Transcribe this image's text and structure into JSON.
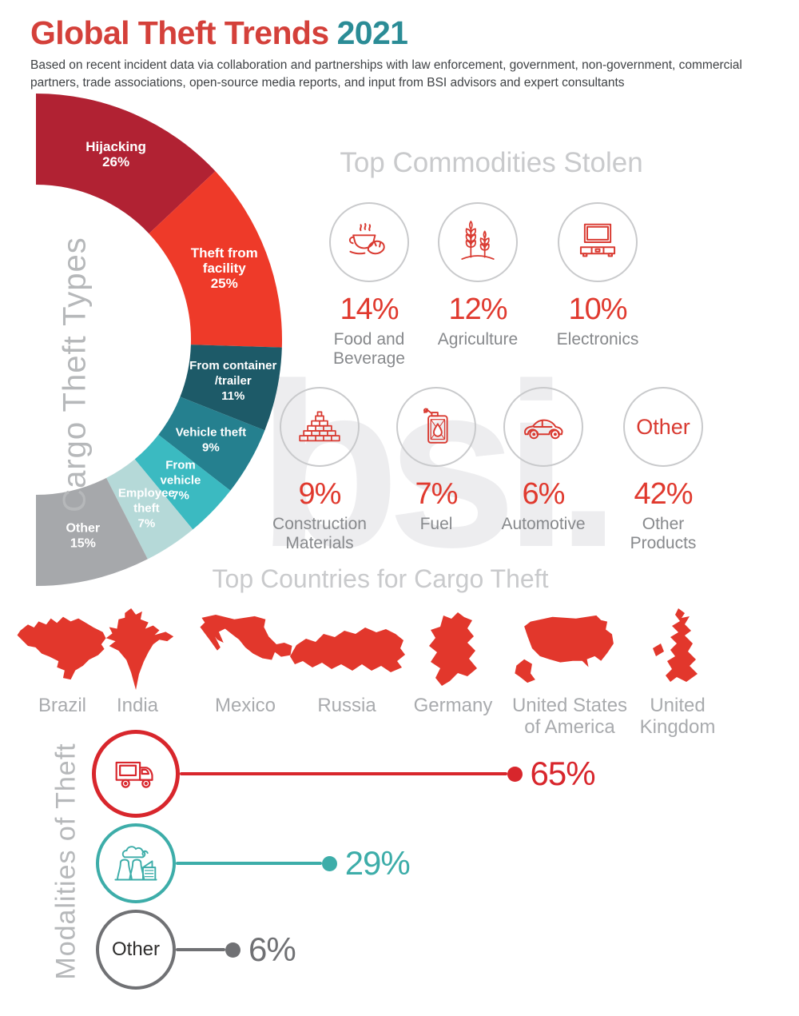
{
  "header": {
    "title_main": "Global Theft Trends",
    "title_year": "2021",
    "subtitle": "Based on recent incident data via collaboration and partnerships with law enforcement, government, non-government, commercial partners, trade associations, open-source media reports, and input from BSI advisors and expert consultants"
  },
  "watermark": "bsi.",
  "chart_data": [
    {
      "type": "pie",
      "variant": "half-donut",
      "title": "Cargo Theft Types",
      "unit": "%",
      "segments": [
        {
          "label": "Hijacking",
          "value": 26,
          "display": "26%",
          "color": "#b12233",
          "label_lines": [
            "Hijacking",
            "26%"
          ]
        },
        {
          "label": "Theft from facility",
          "value": 25,
          "display": "25%",
          "color": "#ee3a29",
          "label_lines": [
            "Theft from",
            "facility",
            "25%"
          ]
        },
        {
          "label": "From container/trailer",
          "value": 11,
          "display": "11%",
          "color": "#1d5a68",
          "label_lines": [
            "From container",
            "/trailer",
            "11%"
          ]
        },
        {
          "label": "Vehicle theft",
          "value": 9,
          "display": "9%",
          "color": "#25808f",
          "label_lines": [
            "Vehicle theft",
            "9%"
          ]
        },
        {
          "label": "From vehicle",
          "value": 7,
          "display": "7%",
          "color": "#3bbac1",
          "label_lines": [
            "From",
            "vehicle",
            "7%"
          ]
        },
        {
          "label": "Employee theft",
          "value": 7,
          "display": "7%",
          "color": "#b5d9d8",
          "label_lines": [
            "Employee",
            "theft",
            "7%"
          ]
        },
        {
          "label": "Other",
          "value": 15,
          "display": "15%",
          "color": "#a6a8ab",
          "label_lines": [
            "Other",
            "15%"
          ]
        }
      ]
    },
    {
      "type": "bar",
      "variant": "icon-stats",
      "title": "Top Commodities Stolen",
      "unit": "%",
      "accent_color": "#e0392e",
      "items": [
        {
          "label": "Food and Beverage",
          "label_lines": [
            "Food and",
            "Beverage"
          ],
          "value": 14,
          "display": "14%",
          "icon": "food-beverage-icon"
        },
        {
          "label": "Agriculture",
          "label_lines": [
            "Agriculture"
          ],
          "value": 12,
          "display": "12%",
          "icon": "agriculture-icon"
        },
        {
          "label": "Electronics",
          "label_lines": [
            "Electronics"
          ],
          "value": 10,
          "display": "10%",
          "icon": "electronics-icon"
        },
        {
          "label": "Construction Materials",
          "label_lines": [
            "Construction",
            "Materials"
          ],
          "value": 9,
          "display": "9%",
          "icon": "construction-materials-icon"
        },
        {
          "label": "Fuel",
          "label_lines": [
            "Fuel"
          ],
          "value": 7,
          "display": "7%",
          "icon": "fuel-icon"
        },
        {
          "label": "Automotive",
          "label_lines": [
            "Automotive"
          ],
          "value": 6,
          "display": "6%",
          "icon": "automotive-icon"
        },
        {
          "label": "Other Products",
          "label_lines": [
            "Other",
            "Products"
          ],
          "value": 42,
          "display": "42%",
          "icon": null,
          "circle_text": "Other"
        }
      ]
    },
    {
      "type": "table",
      "variant": "icon-list",
      "title": "Top Countries for Cargo Theft",
      "map_color": "#e2372c",
      "items": [
        {
          "label": "Brazil",
          "label_lines": [
            "Brazil"
          ],
          "icon": "brazil-map-icon"
        },
        {
          "label": "India",
          "label_lines": [
            "India"
          ],
          "icon": "india-map-icon"
        },
        {
          "label": "Mexico",
          "label_lines": [
            "Mexico"
          ],
          "icon": "mexico-map-icon"
        },
        {
          "label": "Russia",
          "label_lines": [
            "Russia"
          ],
          "icon": "russia-map-icon"
        },
        {
          "label": "Germany",
          "label_lines": [
            "Germany"
          ],
          "icon": "germany-map-icon"
        },
        {
          "label": "United States of America",
          "label_lines": [
            "United States",
            "of America"
          ],
          "icon": "usa-map-icon"
        },
        {
          "label": "United Kingdom",
          "label_lines": [
            "United",
            "Kingdom"
          ],
          "icon": "uk-map-icon"
        }
      ]
    },
    {
      "type": "bar",
      "variant": "lollipop",
      "title": "Modalities of Theft",
      "unit": "%",
      "items": [
        {
          "value": 65,
          "display": "65%",
          "color": "#d8262c",
          "icon": "truck-icon"
        },
        {
          "value": 29,
          "display": "29%",
          "color": "#3dada9",
          "icon": "factory-icon"
        },
        {
          "value": 6,
          "display": "6%",
          "color": "#707174",
          "icon": null,
          "circle_text": "Other"
        }
      ]
    }
  ]
}
